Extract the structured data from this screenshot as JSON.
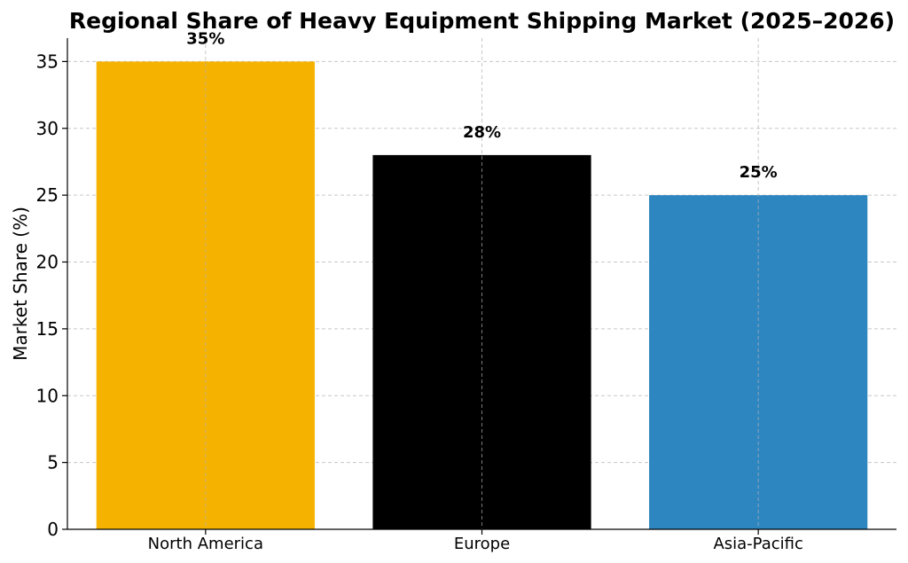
{
  "chart_data": {
    "type": "bar",
    "title": "Regional Share of Heavy Equipment Shipping Market (2025–2026)",
    "xlabel": "",
    "ylabel": "Market Share (%)",
    "categories": [
      "North America",
      "Europe",
      "Asia-Pacific"
    ],
    "values": [
      35,
      28,
      25
    ],
    "value_labels": [
      "35%",
      "28%",
      "25%"
    ],
    "colors": [
      "#F5B300",
      "#000000",
      "#2E86C1"
    ],
    "ylim": [
      0,
      36.75
    ],
    "yticks": [
      0,
      5,
      10,
      15,
      20,
      25,
      30,
      35
    ],
    "grid": true
  }
}
